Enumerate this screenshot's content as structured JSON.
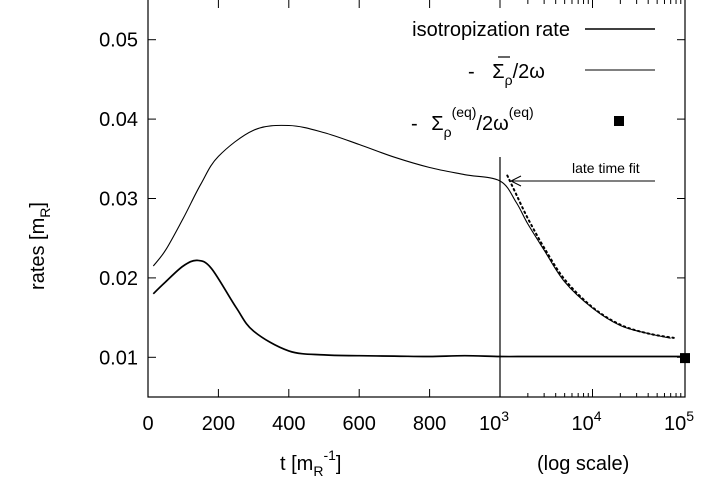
{
  "chart_data": {
    "type": "line",
    "xlabel": "t [m",
    "xlabel_sub": "R",
    "xlabel_sup": "-1",
    "xlabel_end": "]",
    "ylabel": "rates [m",
    "ylabel_sub": "R",
    "ylabel_end": "]",
    "x_scale_note": "(log scale)",
    "x_linear_range": [
      0,
      1000
    ],
    "x_log_range": [
      1000,
      100000
    ],
    "ylim": [
      0.005,
      0.055
    ],
    "y_ticks": [
      "0.01",
      "0.02",
      "0.03",
      "0.04",
      "0.05"
    ],
    "y_tick_values": [
      0.01,
      0.02,
      0.03,
      0.04,
      0.05
    ],
    "x_ticks_linear": [
      "0",
      "200",
      "400",
      "600",
      "800"
    ],
    "x_ticks_linear_values": [
      0,
      200,
      400,
      600,
      800
    ],
    "x_ticks_log": [
      {
        "base": "10",
        "exp": "3",
        "value": 1000
      },
      {
        "base": "10",
        "exp": "4",
        "value": 10000
      },
      {
        "base": "10",
        "exp": "5",
        "value": 100000
      }
    ],
    "legend": {
      "isotropization": "isotropization rate",
      "sigma_prefix": "- ",
      "sigma_sym": "Σ",
      "sigma_sub": "ρ",
      "sigma_rest": "/2ω",
      "eq_prefix": "- ",
      "eq_sym": "Σ",
      "eq_sub": "ρ",
      "eq_sup": "(eq)",
      "eq_mid": "/2ω",
      "eq_sup2": "(eq)"
    },
    "annotation": "late time fit",
    "series": [
      {
        "key": "isotropization",
        "x": [
          15,
          50,
          100,
          140,
          180,
          250,
          300,
          400,
          500,
          600,
          700,
          800,
          900,
          1000,
          2000,
          5000,
          10000,
          30000,
          100000
        ],
        "y": [
          0.018,
          0.0195,
          0.0215,
          0.0222,
          0.0212,
          0.0163,
          0.0133,
          0.0108,
          0.0103,
          0.0102,
          0.01015,
          0.0101,
          0.0102,
          0.0101,
          0.0101,
          0.0101,
          0.0101,
          0.0101,
          0.0101
        ]
      },
      {
        "key": "sigma",
        "x": [
          15,
          50,
          100,
          150,
          200,
          300,
          400,
          500,
          600,
          700,
          800,
          900,
          1000,
          1500,
          2000,
          3000,
          5000,
          10000,
          20000,
          40000,
          70000
        ],
        "y": [
          0.0215,
          0.0235,
          0.0275,
          0.0318,
          0.0353,
          0.0386,
          0.0392,
          0.0383,
          0.0368,
          0.0352,
          0.0339,
          0.033,
          0.0322,
          0.0295,
          0.0268,
          0.0235,
          0.0195,
          0.0162,
          0.014,
          0.013,
          0.0124
        ]
      },
      {
        "key": "fit",
        "x": [
          1200,
          1500,
          2000,
          3000,
          5000,
          10000,
          20000,
          40000,
          80000
        ],
        "y": [
          0.0329,
          0.0305,
          0.0275,
          0.0238,
          0.0198,
          0.0163,
          0.0141,
          0.013,
          0.0124
        ]
      },
      {
        "key": "equilibrium",
        "x": [
          100000
        ],
        "y": [
          0.0099
        ]
      }
    ]
  }
}
